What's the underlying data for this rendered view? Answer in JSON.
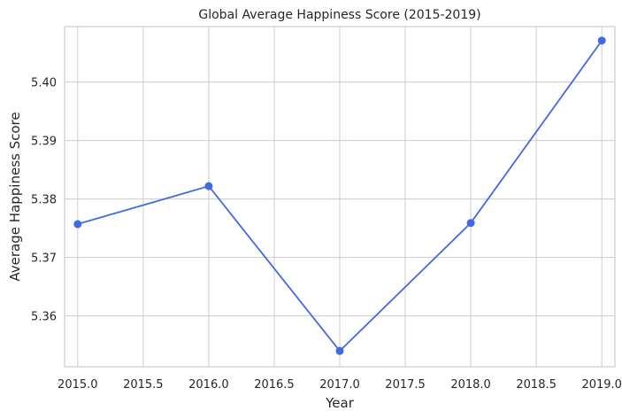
{
  "chart_data": {
    "type": "line",
    "title": "Global Average Happiness Score (2015-2019)",
    "xlabel": "Year",
    "ylabel": "Average Happiness Score",
    "x": [
      2015,
      2016,
      2017,
      2018,
      2019
    ],
    "series": [
      {
        "values": [
          5.3757,
          5.3822,
          5.354,
          5.3759,
          5.4071
        ]
      }
    ],
    "xlim": [
      2014.9,
      2019.1
    ],
    "ylim": [
      5.3513,
      5.4095
    ],
    "x_ticks": [
      2015.0,
      2015.5,
      2016.0,
      2016.5,
      2017.0,
      2017.5,
      2018.0,
      2018.5,
      2019.0
    ],
    "x_tick_labels": [
      "2015.0",
      "2015.5",
      "2016.0",
      "2016.5",
      "2017.0",
      "2017.5",
      "2018.0",
      "2018.5",
      "2019.0"
    ],
    "y_ticks": [
      5.36,
      5.37,
      5.38,
      5.39,
      5.4
    ],
    "y_tick_labels": [
      "5.36",
      "5.37",
      "5.38",
      "5.39",
      "5.40"
    ],
    "grid": true,
    "line_color": "#4169e1",
    "marker": "circle"
  }
}
